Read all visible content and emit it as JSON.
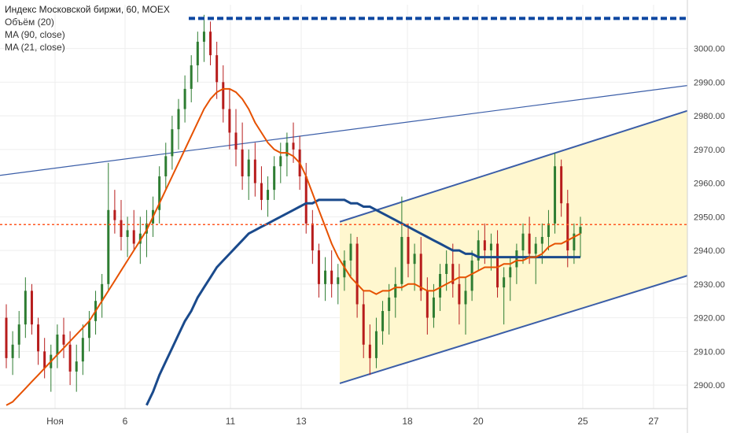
{
  "legend": {
    "title": "Индекс Московской биржи, 60, MOEX",
    "volume": "Объём (20)",
    "ma90": "MA (90, close)",
    "ma21": "MA (21, close)"
  },
  "colors": {
    "up": "#2e7d32",
    "down": "#b71c1c",
    "ma21": "#e65100",
    "ma90": "#1a4a8c",
    "trendline": "#3b5ea8",
    "channel_fill": "#fff7cc",
    "resistance": "#0d47a1",
    "last_price": "#ff5722",
    "grid": "#eeeeee"
  },
  "chart_data": {
    "type": "candlestick",
    "instrument": "Индекс Московской биржи",
    "interval": "60",
    "exchange": "MOEX",
    "ylim": [
      2893,
      3013
    ],
    "y_ticks": [
      "2900.00",
      "2910.00",
      "2920.00",
      "2930.00",
      "2940.00",
      "2950.00",
      "2960.00",
      "2970.00",
      "2980.00",
      "2990.00",
      "3000.00"
    ],
    "x_ticks": [
      "Ноя",
      "6",
      "11",
      "13",
      "18",
      "20",
      "25",
      "27"
    ],
    "price_labels": {
      "resistance": "3008.95",
      "last": "2947.68"
    },
    "levels": {
      "resistance": 3008.95,
      "last": 2947.68
    },
    "candles": [
      [
        2920,
        2924,
        2905,
        2908
      ],
      [
        2908,
        2916,
        2903,
        2912
      ],
      [
        2912,
        2922,
        2908,
        2918
      ],
      [
        2918,
        2932,
        2914,
        2928
      ],
      [
        2928,
        2930,
        2915,
        2918
      ],
      [
        2918,
        2920,
        2906,
        2910
      ],
      [
        2910,
        2914,
        2902,
        2905
      ],
      [
        2905,
        2912,
        2898,
        2909
      ],
      [
        2909,
        2918,
        2905,
        2915
      ],
      [
        2915,
        2920,
        2908,
        2912
      ],
      [
        2912,
        2916,
        2900,
        2904
      ],
      [
        2904,
        2912,
        2898,
        2907
      ],
      [
        2907,
        2918,
        2903,
        2914
      ],
      [
        2914,
        2922,
        2910,
        2919
      ],
      [
        2919,
        2928,
        2915,
        2925
      ],
      [
        2925,
        2933,
        2920,
        2930
      ],
      [
        2930,
        2966,
        2928,
        2952
      ],
      [
        2952,
        2958,
        2945,
        2949
      ],
      [
        2949,
        2955,
        2940,
        2944
      ],
      [
        2944,
        2950,
        2938,
        2946
      ],
      [
        2946,
        2952,
        2940,
        2942
      ],
      [
        2942,
        2950,
        2936,
        2945
      ],
      [
        2945,
        2952,
        2938,
        2948
      ],
      [
        2948,
        2956,
        2944,
        2952
      ],
      [
        2952,
        2965,
        2948,
        2962
      ],
      [
        2962,
        2972,
        2958,
        2968
      ],
      [
        2968,
        2980,
        2964,
        2976
      ],
      [
        2976,
        2985,
        2970,
        2982
      ],
      [
        2982,
        2992,
        2978,
        2988
      ],
      [
        2988,
        2998,
        2984,
        2995
      ],
      [
        2995,
        3005,
        2990,
        3002
      ],
      [
        3002,
        3010,
        2996,
        3005
      ],
      [
        3005,
        3008,
        2995,
        2998
      ],
      [
        2998,
        3002,
        2985,
        2990
      ],
      [
        2990,
        2995,
        2978,
        2982
      ],
      [
        2982,
        2988,
        2970,
        2975
      ],
      [
        2975,
        2982,
        2965,
        2970
      ],
      [
        2970,
        2978,
        2958,
        2962
      ],
      [
        2962,
        2970,
        2955,
        2967
      ],
      [
        2967,
        2972,
        2956,
        2960
      ],
      [
        2960,
        2965,
        2952,
        2955
      ],
      [
        2955,
        2962,
        2950,
        2958
      ],
      [
        2958,
        2968,
        2955,
        2965
      ],
      [
        2965,
        2972,
        2960,
        2968
      ],
      [
        2968,
        2975,
        2962,
        2972
      ],
      [
        2972,
        2978,
        2966,
        2970
      ],
      [
        2970,
        2974,
        2958,
        2962
      ],
      [
        2962,
        2966,
        2945,
        2948
      ],
      [
        2948,
        2952,
        2936,
        2940
      ],
      [
        2940,
        2942,
        2926,
        2930
      ],
      [
        2930,
        2938,
        2925,
        2934
      ],
      [
        2934,
        2940,
        2926,
        2930
      ],
      [
        2930,
        2936,
        2924,
        2932
      ],
      [
        2932,
        2940,
        2928,
        2937
      ],
      [
        2937,
        2945,
        2932,
        2942
      ],
      [
        2942,
        2944,
        2920,
        2924
      ],
      [
        2924,
        2928,
        2908,
        2912
      ],
      [
        2912,
        2918,
        2903,
        2908
      ],
      [
        2908,
        2920,
        2905,
        2916
      ],
      [
        2916,
        2925,
        2912,
        2922
      ],
      [
        2922,
        2930,
        2915,
        2926
      ],
      [
        2926,
        2935,
        2920,
        2930
      ],
      [
        2930,
        2956,
        2928,
        2944
      ],
      [
        2944,
        2948,
        2932,
        2936
      ],
      [
        2936,
        2942,
        2928,
        2939
      ],
      [
        2939,
        2944,
        2925,
        2928
      ],
      [
        2928,
        2932,
        2915,
        2920
      ],
      [
        2920,
        2930,
        2917,
        2926
      ],
      [
        2926,
        2936,
        2922,
        2933
      ],
      [
        2933,
        2940,
        2928,
        2936
      ],
      [
        2936,
        2942,
        2926,
        2930
      ],
      [
        2930,
        2936,
        2918,
        2924
      ],
      [
        2924,
        2932,
        2915,
        2928
      ],
      [
        2928,
        2940,
        2925,
        2937
      ],
      [
        2937,
        2946,
        2934,
        2943
      ],
      [
        2943,
        2948,
        2936,
        2940
      ],
      [
        2940,
        2945,
        2934,
        2942
      ],
      [
        2942,
        2946,
        2926,
        2929
      ],
      [
        2929,
        2935,
        2918,
        2932
      ],
      [
        2932,
        2938,
        2925,
        2935
      ],
      [
        2935,
        2942,
        2930,
        2940
      ],
      [
        2940,
        2948,
        2936,
        2945
      ],
      [
        2945,
        2950,
        2936,
        2939
      ],
      [
        2939,
        2944,
        2930,
        2942
      ],
      [
        2942,
        2948,
        2936,
        2944
      ],
      [
        2944,
        2952,
        2940,
        2948
      ],
      [
        2948,
        2969,
        2945,
        2965
      ],
      [
        2965,
        2967,
        2950,
        2954
      ],
      [
        2954,
        2958,
        2935,
        2940
      ],
      [
        2940,
        2948,
        2936,
        2945
      ],
      [
        2945,
        2950,
        2938,
        2947
      ]
    ],
    "ma21": [
      2894,
      2895,
      2897,
      2899,
      2901,
      2903,
      2905,
      2907,
      2909,
      2911,
      2913,
      2915,
      2917,
      2919,
      2922,
      2925,
      2928,
      2931,
      2934,
      2937,
      2940,
      2943,
      2946,
      2950,
      2954,
      2958,
      2962,
      2966,
      2970,
      2974,
      2978,
      2982,
      2985,
      2987,
      2988,
      2988,
      2987,
      2985,
      2982,
      2978,
      2975,
      2972,
      2970,
      2969,
      2969,
      2968,
      2966,
      2962,
      2957,
      2952,
      2947,
      2942,
      2938,
      2935,
      2932,
      2930,
      2928,
      2928,
      2927,
      2928,
      2928,
      2929,
      2929,
      2930,
      2930,
      2929,
      2928,
      2928,
      2929,
      2930,
      2931,
      2932,
      2932,
      2933,
      2934,
      2935,
      2935,
      2935,
      2936,
      2936,
      2937,
      2937,
      2938,
      2938,
      2939,
      2941,
      2942,
      2942,
      2943,
      2944,
      2945
    ],
    "ma90": [
      null,
      null,
      null,
      null,
      null,
      null,
      null,
      null,
      null,
      null,
      null,
      null,
      null,
      null,
      null,
      null,
      null,
      null,
      null,
      null,
      null,
      null,
      2894,
      2898,
      2903,
      2907,
      2911,
      2915,
      2919,
      2922,
      2926,
      2929,
      2932,
      2935,
      2937,
      2939,
      2941,
      2943,
      2945,
      2946,
      2947,
      2948,
      2949,
      2950,
      2951,
      2952,
      2953,
      2954,
      2954,
      2955,
      2955,
      2955,
      2955,
      2955,
      2954,
      2954,
      2953,
      2953,
      2952,
      2951,
      2950,
      2949,
      2948,
      2947,
      2946,
      2945,
      2944,
      2943,
      2942,
      2941,
      2940,
      2940,
      2939,
      2939,
      2938,
      2938,
      2938,
      2938,
      2938,
      2938,
      2938,
      2938,
      2938,
      2938,
      2938,
      2938,
      2938,
      2938,
      2938,
      2938,
      2938
    ]
  }
}
